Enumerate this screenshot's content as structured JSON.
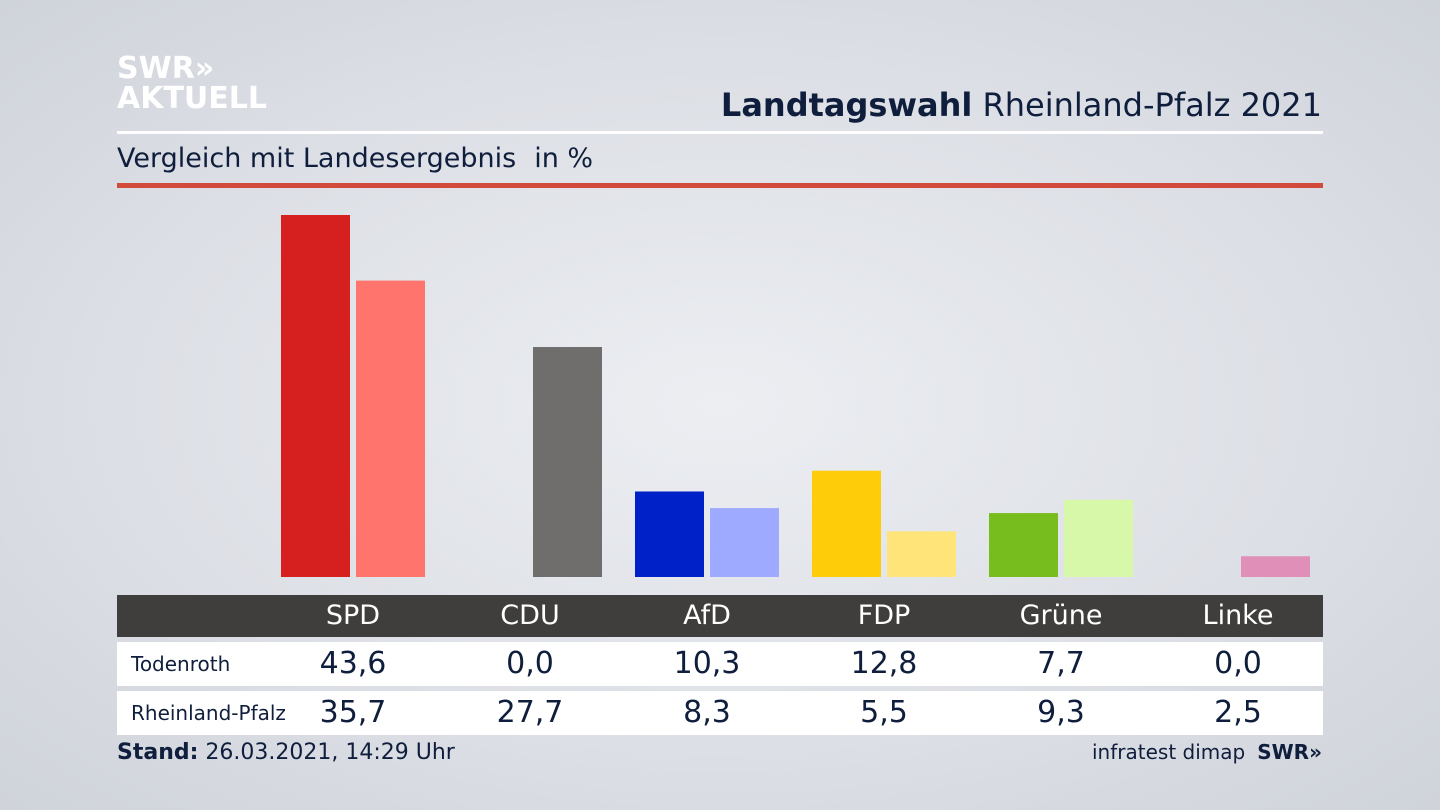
{
  "logo": {
    "line1": "SWR",
    "line2": "AKTUELL",
    "chevrons": "»"
  },
  "header": {
    "title_bold": "Landtagswahl",
    "title_rest": "Rheinland-Pfalz 2021"
  },
  "subtitle": {
    "text": "Vergleich mit Landesergebnis",
    "unit": "in %"
  },
  "footer": {
    "stand_label": "Stand:",
    "stand_value": "26.03.2021, 14:29 Uhr",
    "source": "infratest dimap",
    "brand": "SWR»"
  },
  "colors": {
    "SPD": [
      "#d62020",
      "#ff756e"
    ],
    "CDU": [
      "#6f6e6d",
      "#6f6e6d"
    ],
    "AfD": [
      "#0020c8",
      "#9daaff"
    ],
    "FDP": [
      "#ffcc0a",
      "#ffe479"
    ],
    "Grüne": [
      "#78bd1e",
      "#d7f8a9"
    ],
    "Linke": [
      "#c2187a",
      "#e090b8"
    ]
  },
  "chart_data": {
    "type": "bar",
    "categories": [
      "SPD",
      "CDU",
      "AfD",
      "FDP",
      "Grüne",
      "Linke"
    ],
    "series": [
      {
        "name": "Todenroth",
        "values": [
          43.6,
          0.0,
          10.3,
          12.8,
          7.7,
          0.0
        ]
      },
      {
        "name": "Rheinland-Pfalz",
        "values": [
          35.7,
          27.7,
          8.3,
          5.5,
          9.3,
          2.5
        ]
      }
    ],
    "display_values": [
      [
        "43,6",
        "0,0",
        "10,3",
        "12,8",
        "7,7",
        "0,0"
      ],
      [
        "35,7",
        "27,7",
        "8,3",
        "5,5",
        "9,3",
        "2,5"
      ]
    ],
    "ylim": [
      0,
      43.6
    ]
  }
}
